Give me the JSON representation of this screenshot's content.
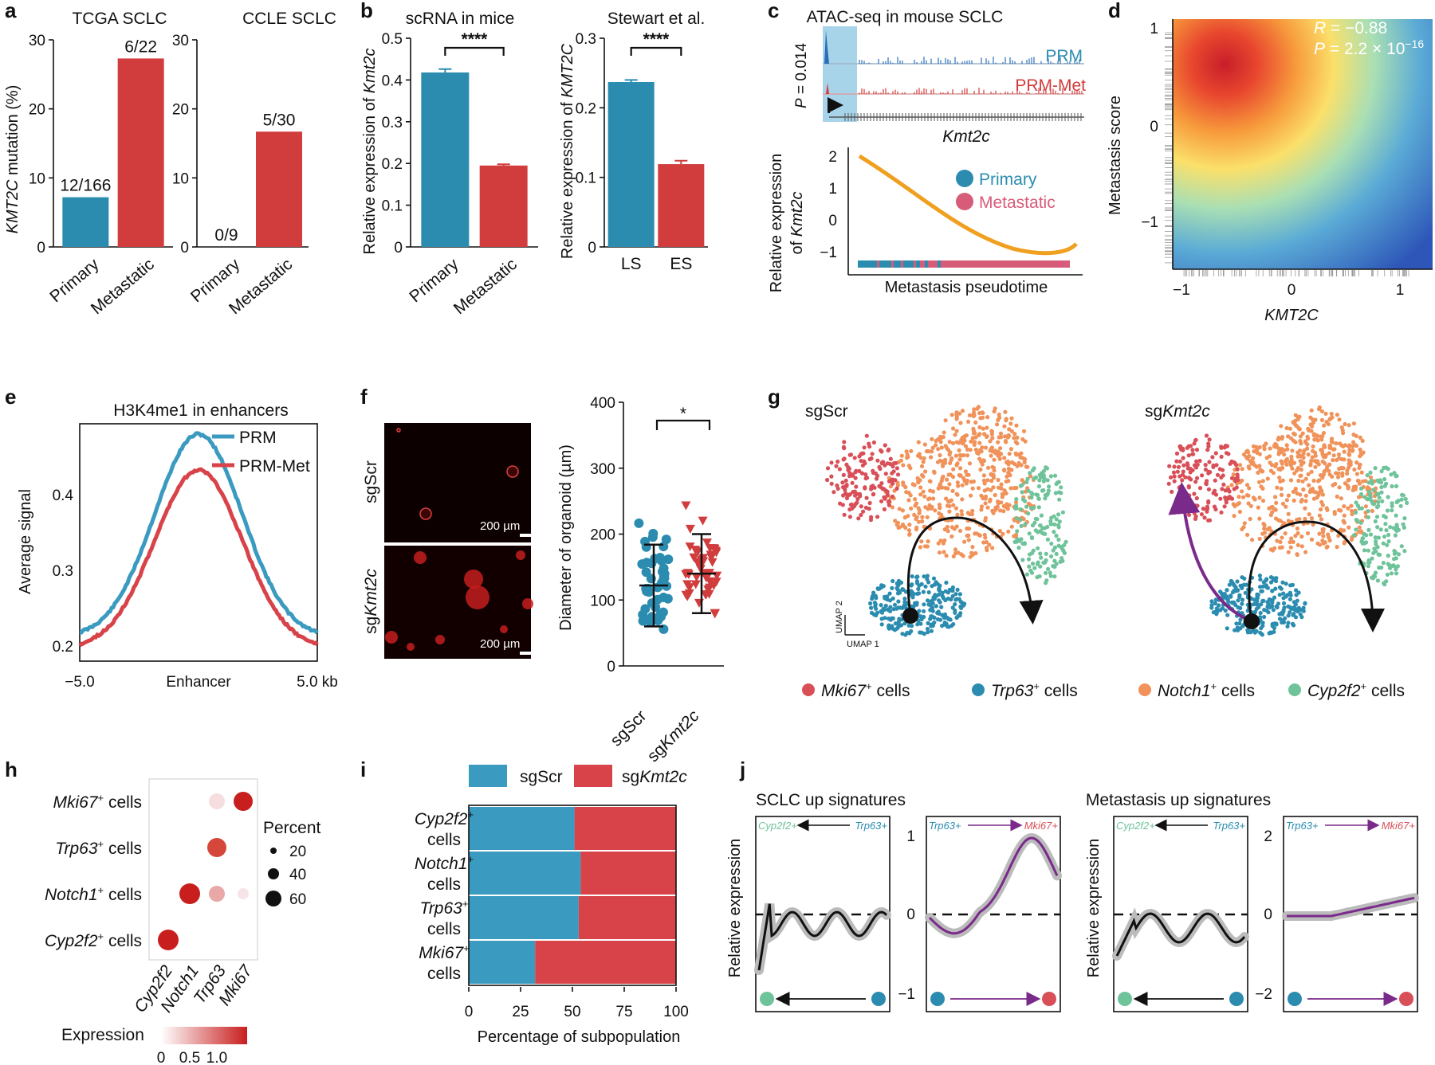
{
  "colors": {
    "blue": "#2b8cb0",
    "red": "#d13c3c",
    "orange": "#f0962a",
    "pink": "#d75c7a",
    "mki67": "#d94f58",
    "trp63": "#2b8cb0",
    "notch1": "#f0925a",
    "cyp2f2": "#6fc39a",
    "purple": "#7a2a8a"
  },
  "panel_labels": [
    "a",
    "b",
    "c",
    "d",
    "e",
    "f",
    "g",
    "h",
    "i",
    "j"
  ],
  "panel_a": {
    "title_left": "TCGA SCLC",
    "title_right": "CCLE SCLC",
    "ylabel_prefix": "KMT2C",
    "ylabel_suffix": " mutation (%)",
    "categories": [
      "Primary",
      "Metastatic"
    ]
  },
  "panel_b": {
    "title_left": "scRNA in mice",
    "title_right": "Stewart et al.",
    "ylabel_left_prefix": "Relative expression of ",
    "ylabel_left_gene": "Kmt2c",
    "ylabel_right_prefix": "Relative expression of ",
    "ylabel_right_gene": "KMT2C",
    "sig": "****"
  },
  "panel_c": {
    "title": "ATAC-seq in mouse SCLC",
    "pvalue": "P = 0.014",
    "track1": "PRM",
    "track2": "PRM-Met",
    "gene": "Kmt2c",
    "ylabel_line1": "Relative expression",
    "ylabel_line2_prefix": "of ",
    "ylabel_line2_gene": "Kmt2c",
    "xlabel": "Metastasis pseudotime",
    "legend_primary": "Primary",
    "legend_metastatic": "Metastatic",
    "yticks": [
      "2",
      "1",
      "0",
      "−1"
    ]
  },
  "panel_d": {
    "r_text": "R = −0.88",
    "p_text": "P = 2.2 × 10",
    "p_exp": "−16",
    "xlabel": "KMT2C",
    "ylabel": "Metastasis score",
    "xticks": [
      "−1",
      "0",
      "1"
    ],
    "yticks": [
      "1",
      "0",
      "−1"
    ]
  },
  "panel_e": {
    "title": "H3K4me1 in enhancers",
    "ylabel": "Average signal",
    "legend1": "PRM",
    "legend2": "PRM-Met",
    "xticks": [
      "−5.0",
      "Enhancer",
      "5.0 kb"
    ],
    "yticks": [
      "0.4",
      "0.3",
      "0.2"
    ]
  },
  "panel_f": {
    "row1": "sgScr",
    "row2_prefix": "sg",
    "row2_gene": "Kmt2c",
    "scale": "200 µm",
    "ylabel": "Diameter of organoid (µm)",
    "yticks": [
      "400",
      "300",
      "200",
      "100",
      "0"
    ],
    "xcat1": "sgScr",
    "xcat2_prefix": "sg",
    "xcat2_gene": "Kmt2c",
    "sig": "*"
  },
  "panel_g": {
    "title_left": "sgScr",
    "title_right_prefix": "sg",
    "title_right_gene": "Kmt2c",
    "umap1": "UMAP 1",
    "umap2": "UMAP 2",
    "legend": [
      {
        "gene": "Mki67",
        "sup": "+",
        "suffix": " cells"
      },
      {
        "gene": "Trp63",
        "sup": "+",
        "suffix": " cells"
      },
      {
        "gene": "Notch1",
        "sup": "+",
        "suffix": " cells"
      },
      {
        "gene": "Cyp2f2",
        "sup": "+",
        "suffix": " cells"
      }
    ]
  },
  "panel_h": {
    "rows": [
      "Mki67",
      "Trp63",
      "Notch1",
      "Cyp2f2"
    ],
    "row_suffix": " cells",
    "sup": "+",
    "cols": [
      "Cyp2f2",
      "Notch1",
      "Trp63",
      "Mki67"
    ],
    "percent_title": "Percent",
    "percent_values": [
      "20",
      "40",
      "60"
    ],
    "expression_title": "Expression",
    "expression_ticks": [
      "0",
      "0.5",
      "1.0"
    ]
  },
  "panel_i": {
    "legend1": "sgScr",
    "legend2_prefix": "sg",
    "legend2_gene": "Kmt2c",
    "rows": [
      "Cyp2f2",
      "Notch1",
      "Trp63",
      "Mki67"
    ],
    "sup": "+",
    "row_suffix": "cells",
    "xlabel": "Percentage of subpopulation",
    "xticks": [
      "0",
      "25",
      "50",
      "75",
      "100"
    ]
  },
  "panel_j": {
    "title_left": "SCLC up signatures",
    "title_right": "Metastasis up signatures",
    "ylabel": "Relative expression",
    "label_cyp": "Cyp2f2",
    "label_trp": "Trp63",
    "label_mki": "Mki67",
    "sup": "+",
    "left_ticks": [
      "1",
      "0",
      "−1"
    ],
    "right_ticks": [
      "2",
      "0",
      "−2"
    ]
  },
  "chart_data": [
    {
      "panel": "a-left",
      "type": "bar",
      "title": "TCGA SCLC",
      "categories": [
        "Primary",
        "Metastatic"
      ],
      "values": [
        7.2,
        27.3
      ],
      "labels": [
        "12/166",
        "6/22"
      ],
      "ylabel": "KMT2C mutation (%)",
      "ylim": [
        0,
        30
      ],
      "yticks": [
        0,
        10,
        20,
        30
      ]
    },
    {
      "panel": "a-right",
      "type": "bar",
      "title": "CCLE SCLC",
      "categories": [
        "Primary",
        "Metastatic"
      ],
      "values": [
        0,
        16.7
      ],
      "labels": [
        "0/9",
        "5/30"
      ],
      "ylim": [
        0,
        30
      ],
      "yticks": [
        0,
        10,
        20,
        30
      ]
    },
    {
      "panel": "b-left",
      "type": "bar",
      "title": "scRNA in mice",
      "categories": [
        "Primary",
        "Metastatic"
      ],
      "values": [
        0.418,
        0.195
      ],
      "errors": [
        0.008,
        0.003
      ],
      "ylabel": "Relative expression of Kmt2c",
      "ylim": [
        0,
        0.5
      ],
      "yticks": [
        0,
        0.1,
        0.2,
        0.3,
        0.4,
        0.5
      ],
      "yticklabels": [
        "0",
        "0.1",
        "0.2",
        "0.3",
        "0.4",
        "0.5"
      ]
    },
    {
      "panel": "b-right",
      "type": "bar",
      "title": "Stewart et al.",
      "categories": [
        "LS",
        "ES"
      ],
      "values": [
        0.237,
        0.119
      ],
      "errors": [
        0.003,
        0.005
      ],
      "ylabel": "Relative expression of KMT2C",
      "ylim": [
        0,
        0.3
      ],
      "yticks": [
        0,
        0.1,
        0.2,
        0.3
      ],
      "yticklabels": [
        "0",
        "0.1",
        "0.2",
        "0.3"
      ]
    },
    {
      "panel": "f",
      "type": "scatter",
      "ylabel": "Diameter of organoid (µm)",
      "categories": [
        "sgScr",
        "sgKmt2c"
      ],
      "means": [
        122,
        140
      ],
      "sd": [
        62,
        60
      ],
      "ylim": [
        0,
        400
      ],
      "yticks": [
        0,
        100,
        200,
        300,
        400
      ]
    },
    {
      "panel": "i",
      "type": "bar",
      "orientation": "horizontal",
      "stacked": true,
      "categories": [
        "Cyp2f2+ cells",
        "Notch1+ cells",
        "Trp63+ cells",
        "Mki67+ cells"
      ],
      "series": [
        {
          "name": "sgScr",
          "values": [
            51,
            54,
            53,
            32
          ]
        },
        {
          "name": "sgKmt2c",
          "values": [
            49,
            46,
            47,
            68
          ]
        }
      ],
      "xlabel": "Percentage of subpopulation",
      "xlim": [
        0,
        100
      ],
      "xticks": [
        0,
        25,
        50,
        75,
        100
      ]
    }
  ]
}
